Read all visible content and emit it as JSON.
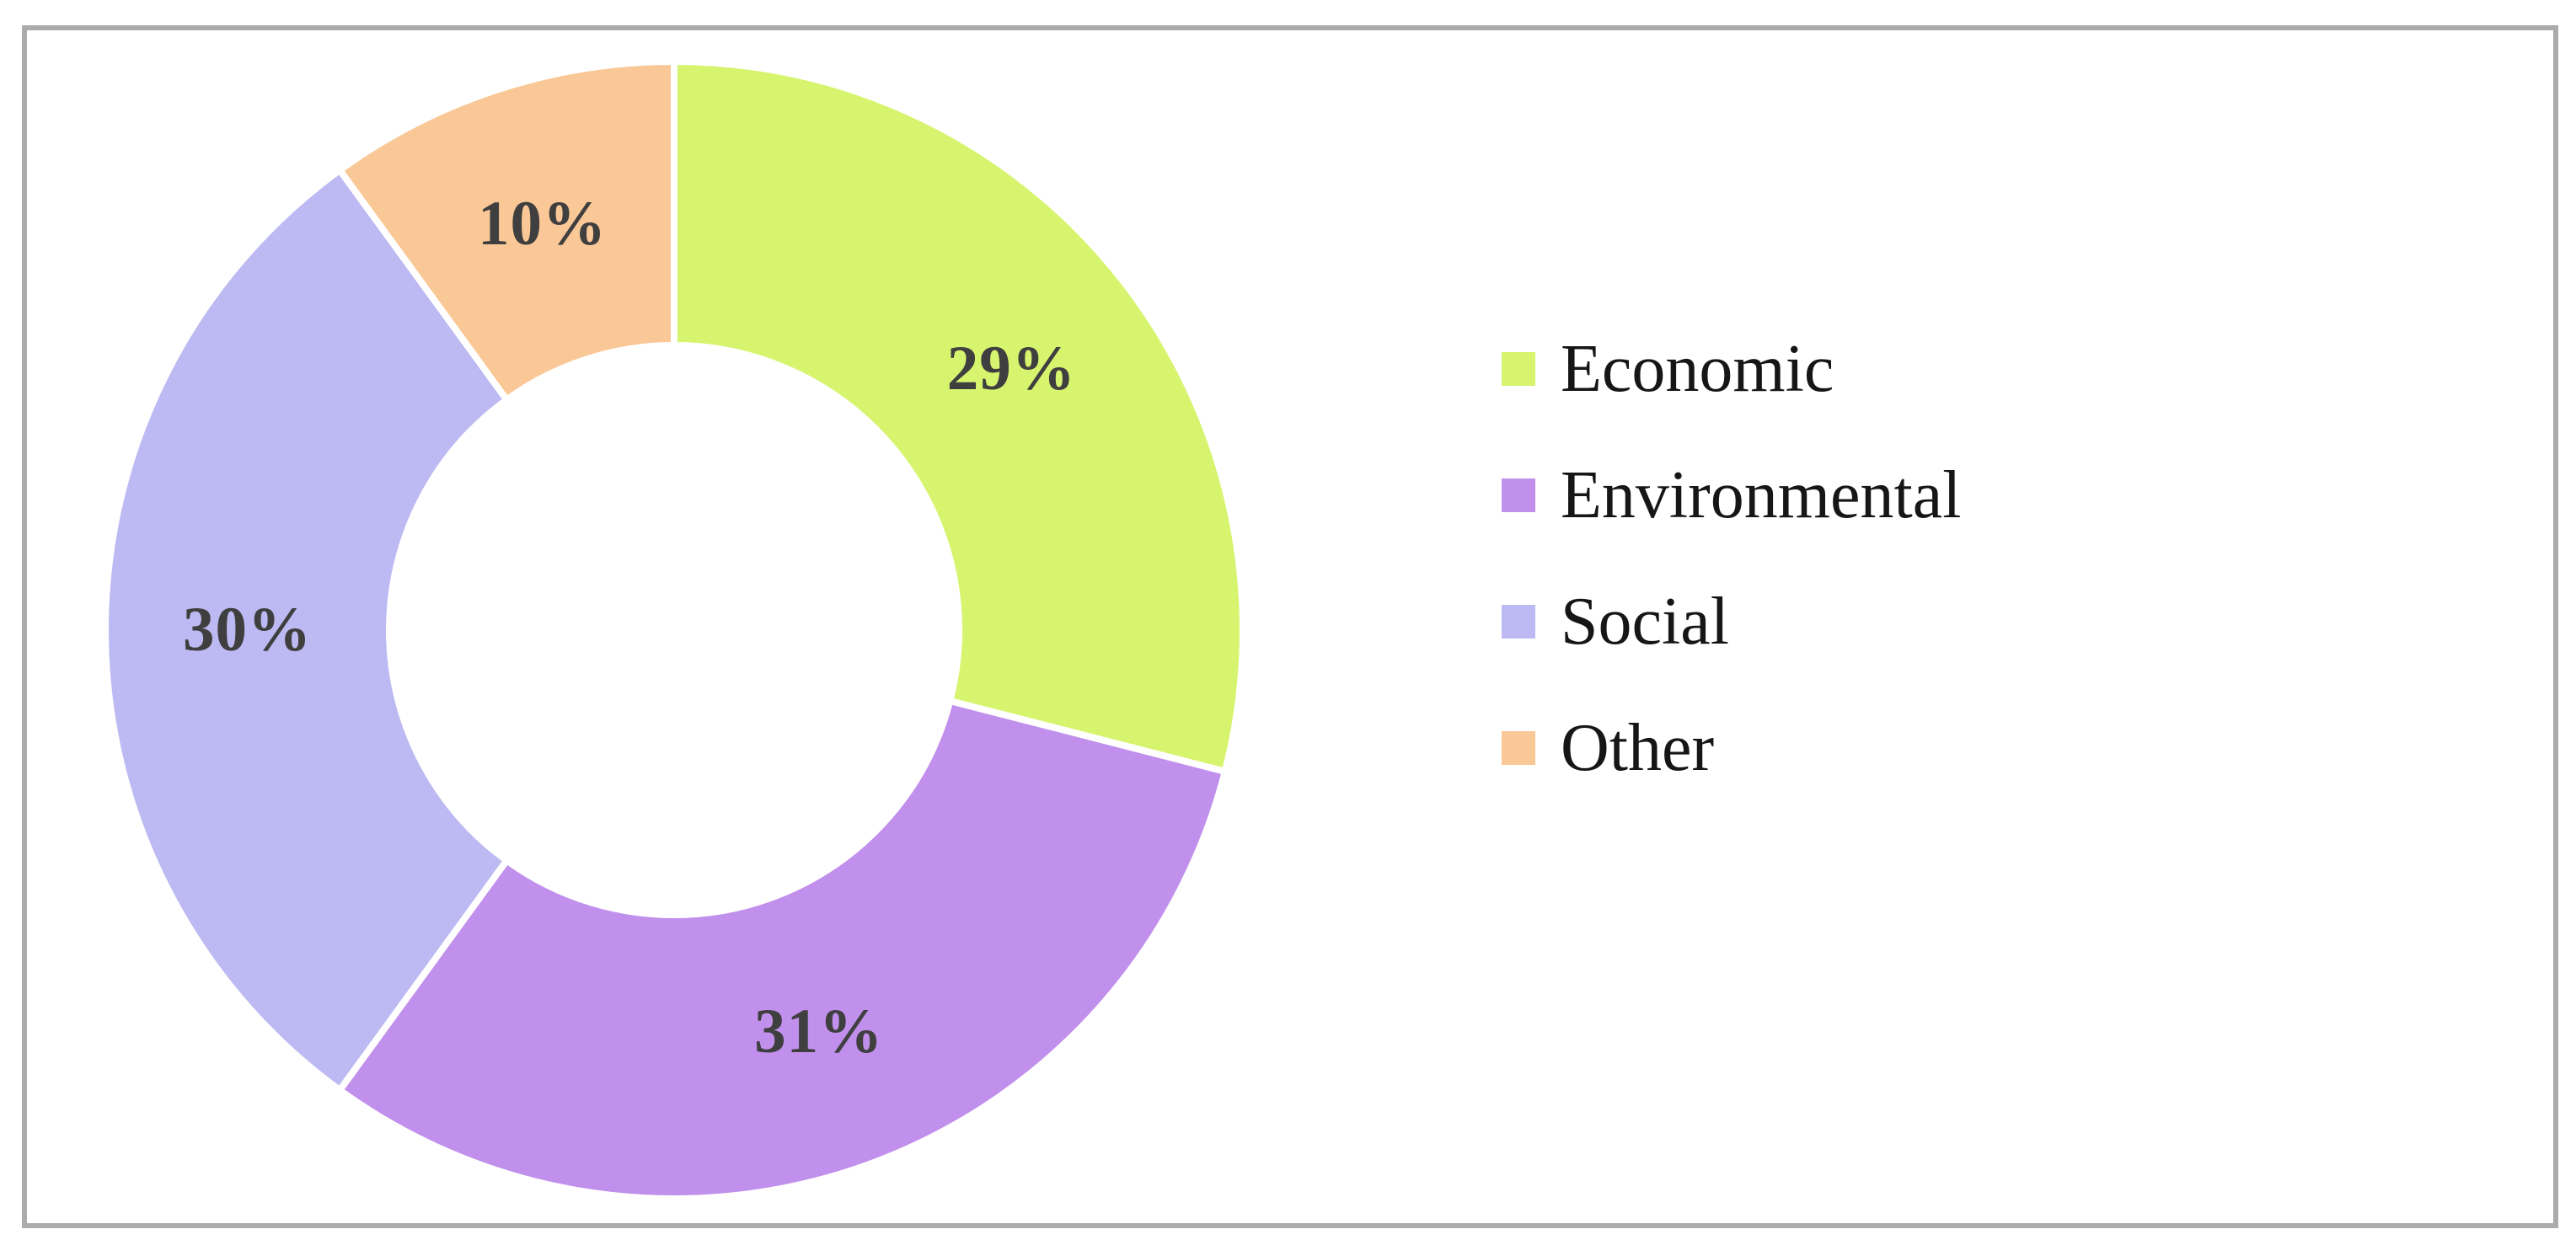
{
  "frame": {
    "border_color": "#ababab",
    "background": "#ffffff"
  },
  "chart_data": {
    "type": "pie",
    "subtype": "donut",
    "title": "",
    "categories": [
      "Economic",
      "Environmental",
      "Social",
      "Other"
    ],
    "values": [
      29,
      31,
      30,
      10
    ],
    "unit": "%",
    "start_angle_deg": 0,
    "direction": "clockwise",
    "donut_hole_ratio": 0.5,
    "gap_color": "#ffffff",
    "data_label_color": "#3f3f3f",
    "legend_position": "right",
    "legend_text_color": "#161616",
    "slices": [
      {
        "label": "Economic",
        "value": 29,
        "display": "29%",
        "color": "#d7f46f"
      },
      {
        "label": "Environmental",
        "value": 31,
        "display": "31%",
        "color": "#c18fec"
      },
      {
        "label": "Social",
        "value": 30,
        "display": "30%",
        "color": "#bdb9f2"
      },
      {
        "label": "Other",
        "value": 10,
        "display": "10%",
        "color": "#fac897"
      }
    ]
  }
}
